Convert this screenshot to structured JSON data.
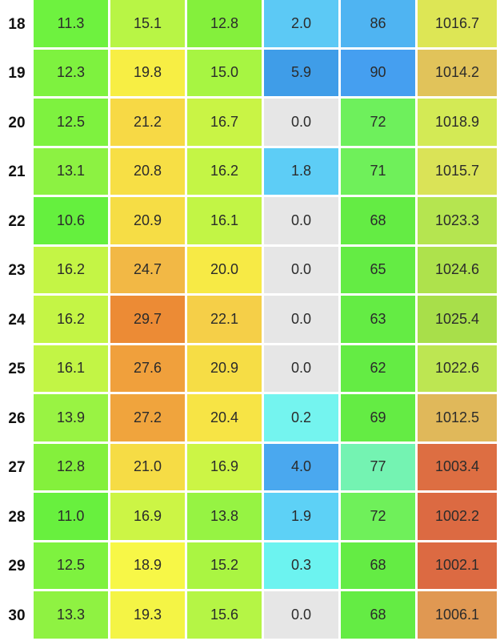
{
  "rows": [
    {
      "day": "18",
      "cells": [
        {
          "value": "11.3",
          "color": "#6ef23f"
        },
        {
          "value": "15.1",
          "color": "#b8f545"
        },
        {
          "value": "12.8",
          "color": "#84f03c"
        },
        {
          "value": "2.0",
          "color": "#5cc9f5"
        },
        {
          "value": "86",
          "color": "#4fb4f2"
        },
        {
          "value": "1016.7",
          "color": "#dde655"
        }
      ]
    },
    {
      "day": "19",
      "cells": [
        {
          "value": "12.3",
          "color": "#7ef23f"
        },
        {
          "value": "19.8",
          "color": "#f7ee44"
        },
        {
          "value": "15.0",
          "color": "#a7f542"
        },
        {
          "value": "5.9",
          "color": "#3f9de8"
        },
        {
          "value": "90",
          "color": "#459ff0"
        },
        {
          "value": "1014.2",
          "color": "#e1c35a"
        }
      ]
    },
    {
      "day": "20",
      "cells": [
        {
          "value": "12.5",
          "color": "#7ef23f"
        },
        {
          "value": "21.2",
          "color": "#f7d945"
        },
        {
          "value": "16.7",
          "color": "#c9f445"
        },
        {
          "value": "0.0",
          "color": "#e6e6e6"
        },
        {
          "value": "72",
          "color": "#6ef05c"
        },
        {
          "value": "1018.9",
          "color": "#d3ea55"
        }
      ]
    },
    {
      "day": "21",
      "cells": [
        {
          "value": "13.1",
          "color": "#8cf242"
        },
        {
          "value": "20.8",
          "color": "#f7df45"
        },
        {
          "value": "16.2",
          "color": "#c4f545"
        },
        {
          "value": "1.8",
          "color": "#5dcdf6"
        },
        {
          "value": "71",
          "color": "#6ff05a"
        },
        {
          "value": "1015.7",
          "color": "#dae357"
        }
      ]
    },
    {
      "day": "22",
      "cells": [
        {
          "value": "10.6",
          "color": "#65f03e"
        },
        {
          "value": "20.9",
          "color": "#f6dd45"
        },
        {
          "value": "16.1",
          "color": "#c2f545"
        },
        {
          "value": "0.0",
          "color": "#e6e6e6"
        },
        {
          "value": "68",
          "color": "#64ec44"
        },
        {
          "value": "1023.3",
          "color": "#b5e550"
        }
      ]
    },
    {
      "day": "23",
      "cells": [
        {
          "value": "16.2",
          "color": "#c4f545"
        },
        {
          "value": "24.7",
          "color": "#f2b845"
        },
        {
          "value": "20.0",
          "color": "#f7ea45"
        },
        {
          "value": "0.0",
          "color": "#e6e6e6"
        },
        {
          "value": "65",
          "color": "#64ec44"
        },
        {
          "value": "1024.6",
          "color": "#aee24c"
        }
      ]
    },
    {
      "day": "24",
      "cells": [
        {
          "value": "16.2",
          "color": "#c4f545"
        },
        {
          "value": "29.7",
          "color": "#ec8b35"
        },
        {
          "value": "22.1",
          "color": "#f5cf48"
        },
        {
          "value": "0.0",
          "color": "#e6e6e6"
        },
        {
          "value": "63",
          "color": "#64ec44"
        },
        {
          "value": "1025.4",
          "color": "#a8df4a"
        }
      ]
    },
    {
      "day": "25",
      "cells": [
        {
          "value": "16.1",
          "color": "#c2f545"
        },
        {
          "value": "27.6",
          "color": "#f0a03c"
        },
        {
          "value": "20.9",
          "color": "#f6dd45"
        },
        {
          "value": "0.0",
          "color": "#e6e6e6"
        },
        {
          "value": "62",
          "color": "#64ec44"
        },
        {
          "value": "1022.6",
          "color": "#bde652"
        }
      ]
    },
    {
      "day": "26",
      "cells": [
        {
          "value": "13.9",
          "color": "#99f343"
        },
        {
          "value": "27.2",
          "color": "#f0a43d"
        },
        {
          "value": "20.4",
          "color": "#f7e445"
        },
        {
          "value": "0.2",
          "color": "#74f4ef"
        },
        {
          "value": "69",
          "color": "#64ec44"
        },
        {
          "value": "1012.5",
          "color": "#e0b85a"
        }
      ]
    },
    {
      "day": "27",
      "cells": [
        {
          "value": "12.8",
          "color": "#84f03c"
        },
        {
          "value": "21.0",
          "color": "#f6dc45"
        },
        {
          "value": "16.9",
          "color": "#ccf545"
        },
        {
          "value": "4.0",
          "color": "#4aa8ef"
        },
        {
          "value": "77",
          "color": "#74f3b2"
        },
        {
          "value": "1003.4",
          "color": "#dd6e42"
        }
      ]
    },
    {
      "day": "28",
      "cells": [
        {
          "value": "11.0",
          "color": "#68f03e"
        },
        {
          "value": "16.9",
          "color": "#ccf545"
        },
        {
          "value": "13.8",
          "color": "#96f343"
        },
        {
          "value": "1.9",
          "color": "#5dd1f6"
        },
        {
          "value": "72",
          "color": "#6ff05a"
        },
        {
          "value": "1002.2",
          "color": "#dc6a42"
        }
      ]
    },
    {
      "day": "29",
      "cells": [
        {
          "value": "12.5",
          "color": "#7ef23f"
        },
        {
          "value": "18.9",
          "color": "#f7f747"
        },
        {
          "value": "15.2",
          "color": "#aaf542"
        },
        {
          "value": "0.3",
          "color": "#6cf3f0"
        },
        {
          "value": "68",
          "color": "#64ec44"
        },
        {
          "value": "1002.1",
          "color": "#dc6a42"
        }
      ]
    },
    {
      "day": "30",
      "cells": [
        {
          "value": "13.3",
          "color": "#8ff242"
        },
        {
          "value": "19.3",
          "color": "#f4f445"
        },
        {
          "value": "15.6",
          "color": "#b5f545"
        },
        {
          "value": "0.0",
          "color": "#e6e6e6"
        },
        {
          "value": "68",
          "color": "#64ec44"
        },
        {
          "value": "1006.1",
          "color": "#e09852"
        }
      ]
    }
  ]
}
